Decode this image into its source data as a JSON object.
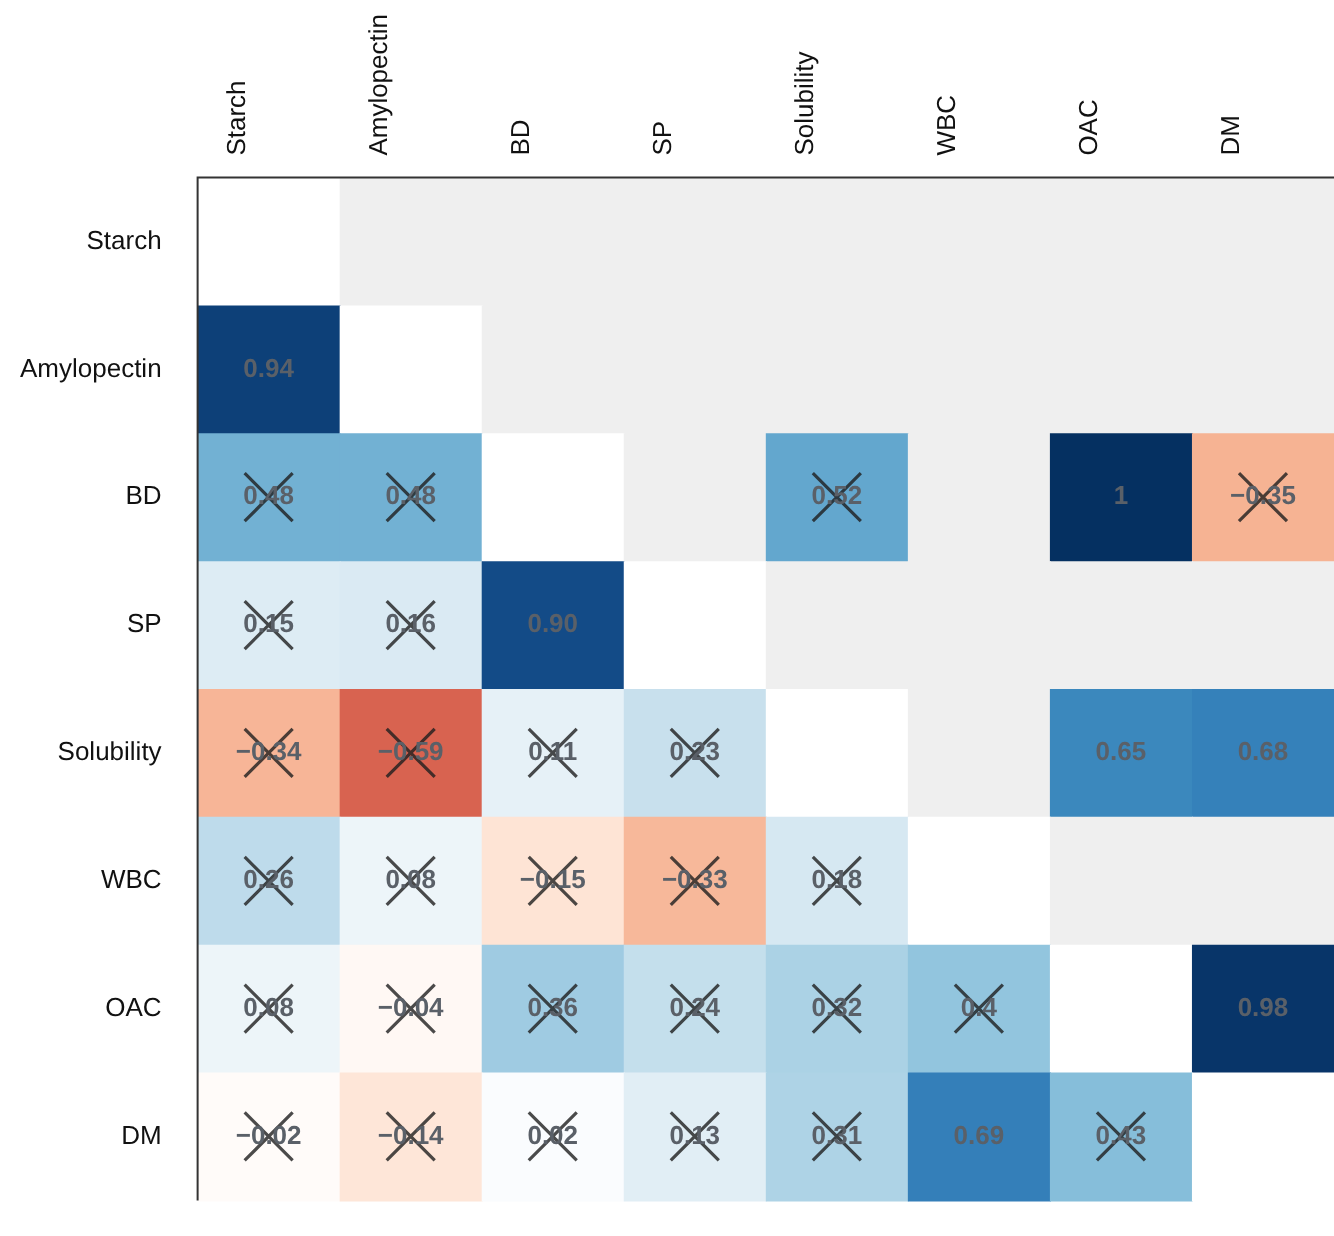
{
  "chart_data": {
    "type": "heatmap",
    "categories": [
      "Starch",
      "Amylopectin",
      "BD",
      "SP",
      "Solubility",
      "WBC",
      "OAC",
      "DM"
    ],
    "y_categories": [
      "Starch",
      "Amylopectin",
      "BD",
      "SP",
      "Solubility",
      "WBC",
      "OAC",
      "DM"
    ],
    "cells": [
      [
        null,
        null,
        null,
        null,
        null,
        null,
        null,
        null
      ],
      [
        0.94,
        null,
        null,
        null,
        null,
        null,
        null,
        null
      ],
      [
        0.48,
        0.48,
        null,
        null,
        0.52,
        null,
        1,
        -0.35
      ],
      [
        0.15,
        0.16,
        0.9,
        null,
        null,
        null,
        null,
        null
      ],
      [
        -0.34,
        -0.59,
        0.11,
        0.23,
        null,
        null,
        0.65,
        0.68
      ],
      [
        0.26,
        0.08,
        -0.15,
        -0.33,
        0.18,
        null,
        null,
        null
      ],
      [
        0.08,
        -0.04,
        0.36,
        0.24,
        0.32,
        0.4,
        null,
        0.98
      ],
      [
        -0.02,
        -0.14,
        0.02,
        0.13,
        0.31,
        0.69,
        0.43,
        null
      ]
    ],
    "cell_labels": [
      [
        null,
        null,
        null,
        null,
        null,
        null,
        null,
        null
      ],
      [
        "0.94",
        null,
        null,
        null,
        null,
        null,
        null,
        null
      ],
      [
        "0.48",
        "0.48",
        null,
        null,
        "0.52",
        null,
        "1",
        "−0.35"
      ],
      [
        "0.15",
        "0.16",
        "0.90",
        null,
        null,
        null,
        null,
        null
      ],
      [
        "−0.34",
        "−0.59",
        "0.11",
        "0.23",
        null,
        null,
        "0.65",
        "0.68"
      ],
      [
        "0.26",
        "0.08",
        "−0.15",
        "−0.33",
        "0.18",
        null,
        null,
        null
      ],
      [
        "0.08",
        "−0.04",
        "0.36",
        "0.24",
        "0.32",
        "0.4",
        null,
        "0.98"
      ],
      [
        "−0.02",
        "−0.14",
        "0.02",
        "0.13",
        "0.31",
        "0.69",
        "0.43",
        null
      ]
    ]
  }
}
